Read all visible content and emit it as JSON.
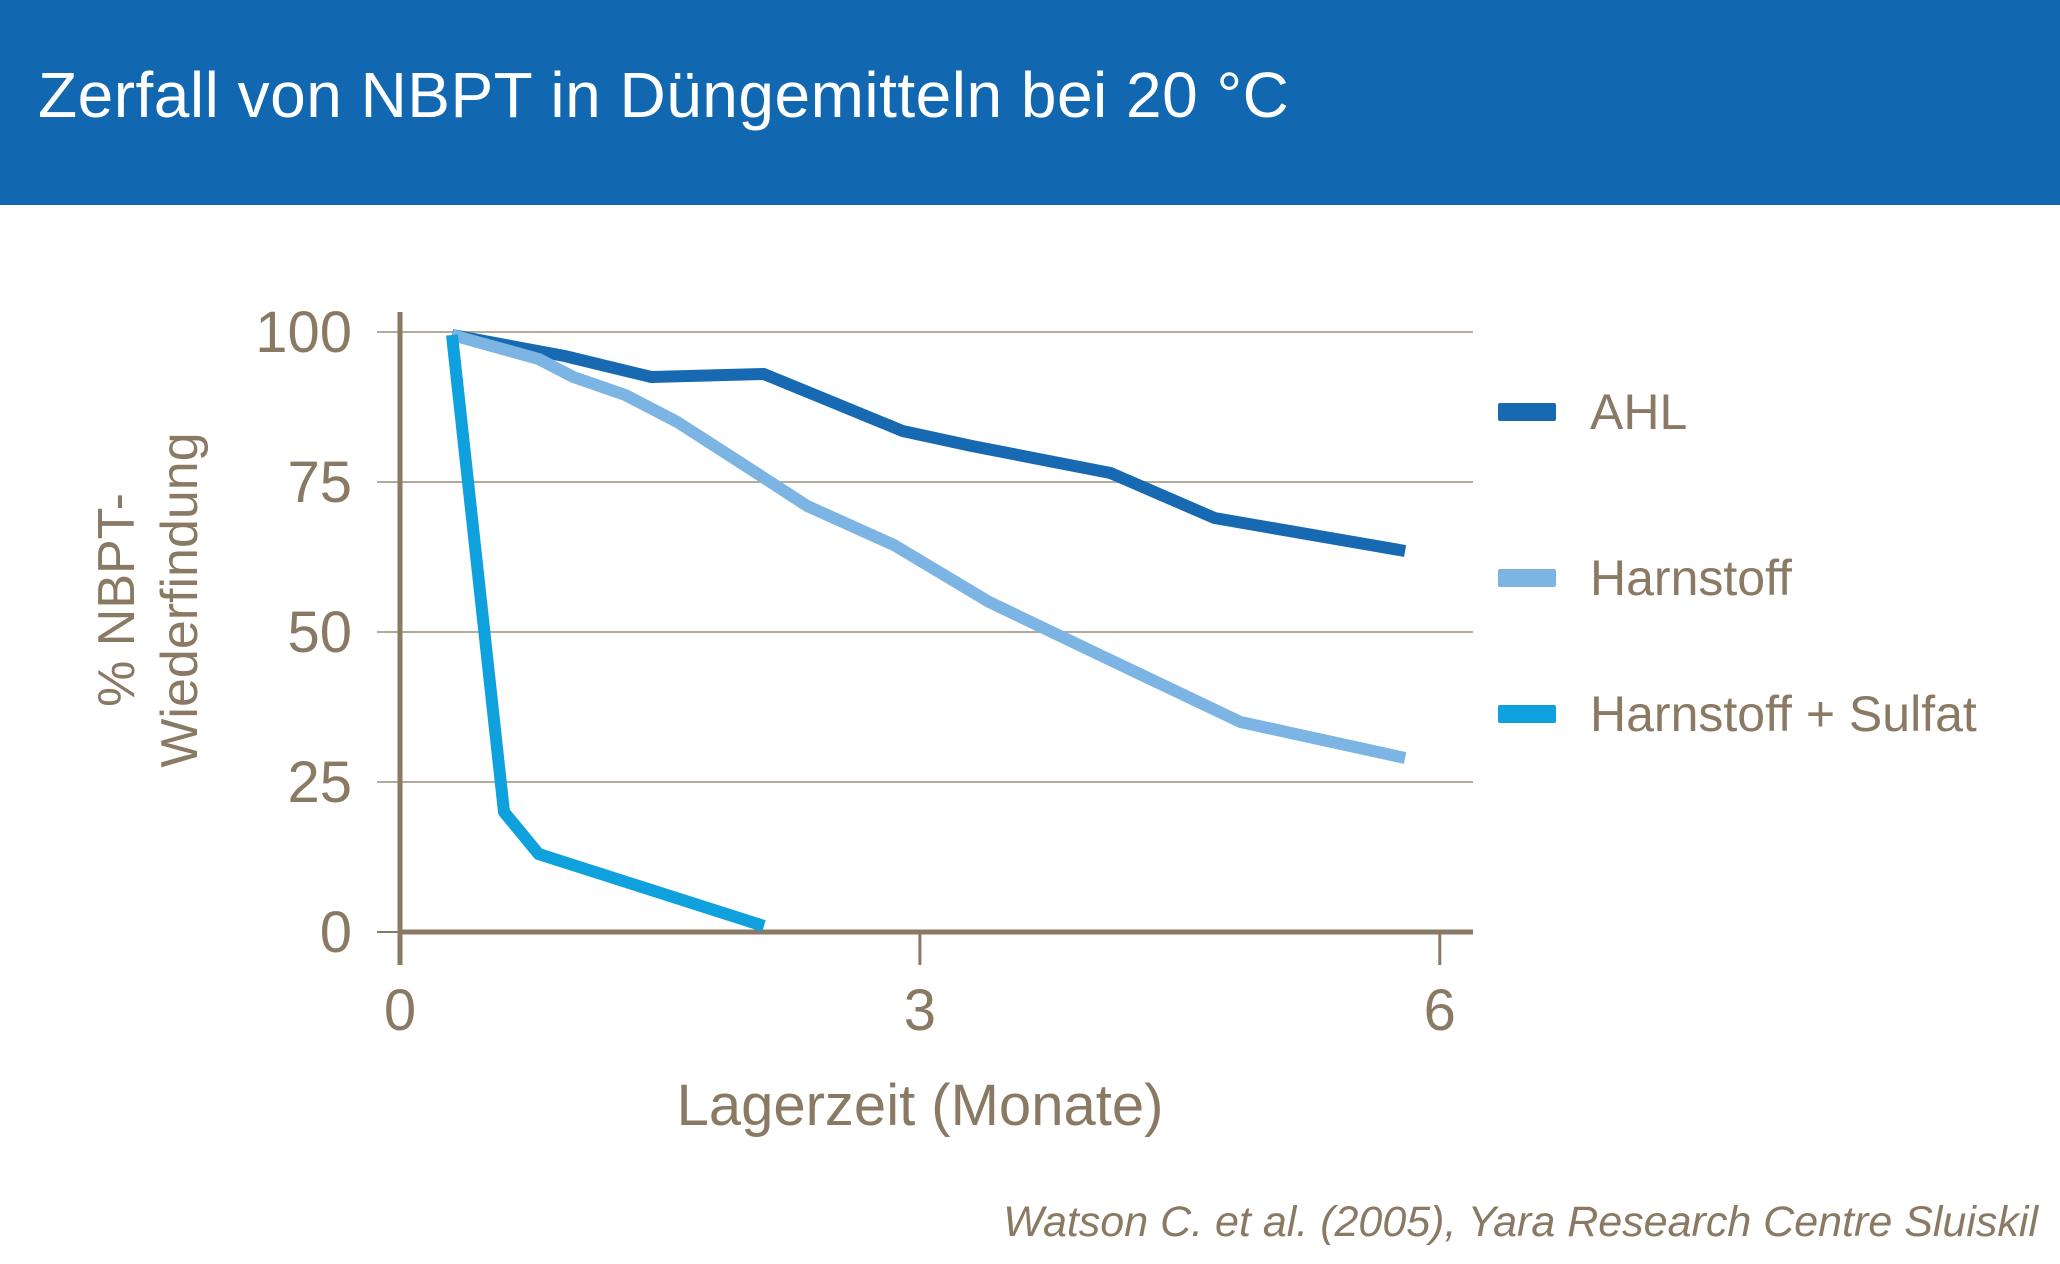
{
  "header": {
    "title": "Zerfall von NBPT in Düngemitteln bei 20 °C"
  },
  "chart_data": {
    "type": "line",
    "title": "Zerfall von NBPT in Düngemitteln bei 20 °C",
    "xlabel": "Lagerzeit (Monate)",
    "ylabel_lines": [
      "% NBPT-",
      "Wiederfindung"
    ],
    "xlim": [
      0,
      6
    ],
    "ylim": [
      0,
      100
    ],
    "xticks": [
      0,
      3,
      6
    ],
    "yticks": [
      0,
      25,
      50,
      75,
      100
    ],
    "grid": "horizontal",
    "legend_position": "right",
    "series": [
      {
        "name": "AHL",
        "color": "#176AB1",
        "points": [
          [
            0.3,
            99.5
          ],
          [
            0.95,
            96
          ],
          [
            1.45,
            92.5
          ],
          [
            2.1,
            93
          ],
          [
            2.9,
            83.5
          ],
          [
            3.3,
            81
          ],
          [
            4.1,
            76.5
          ],
          [
            4.7,
            69
          ],
          [
            5.8,
            63.5
          ]
        ]
      },
      {
        "name": "Harnstoff",
        "color": "#7CB5E4",
        "points": [
          [
            0.3,
            99.5
          ],
          [
            0.8,
            95.5
          ],
          [
            1.0,
            92.5
          ],
          [
            1.3,
            89.5
          ],
          [
            1.6,
            85
          ],
          [
            1.95,
            78.5
          ],
          [
            2.35,
            71
          ],
          [
            2.85,
            64.5
          ],
          [
            3.4,
            55
          ],
          [
            4.05,
            46
          ],
          [
            4.85,
            35
          ],
          [
            5.8,
            29
          ]
        ]
      },
      {
        "name": "Harnstoff + Sulfat",
        "color": "#0FA0DE",
        "points": [
          [
            0.3,
            99.5
          ],
          [
            0.6,
            20
          ],
          [
            0.8,
            13
          ],
          [
            2.1,
            1
          ]
        ]
      }
    ]
  },
  "source": "Watson C. et al. (2005), Yara Research Centre Sluiskil",
  "colors": {
    "header_bg": "#1268B0",
    "text": "#8A7A64",
    "grid": "#B3AB9D",
    "axis": "#8A7A64",
    "title_text": "#FFFFFF"
  }
}
